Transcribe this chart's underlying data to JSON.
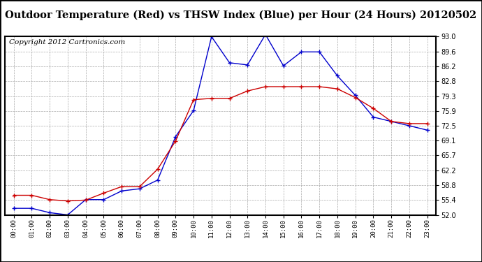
{
  "title": "Outdoor Temperature (Red) vs THSW Index (Blue) per Hour (24 Hours) 20120502",
  "copyright": "Copyright 2012 Cartronics.com",
  "hours": [
    "00:00",
    "01:00",
    "02:00",
    "03:00",
    "04:00",
    "05:00",
    "06:00",
    "07:00",
    "08:00",
    "09:00",
    "10:00",
    "11:00",
    "12:00",
    "13:00",
    "14:00",
    "15:00",
    "16:00",
    "17:00",
    "18:00",
    "19:00",
    "20:00",
    "21:00",
    "22:00",
    "23:00"
  ],
  "red_temp": [
    56.5,
    56.5,
    55.5,
    55.2,
    55.4,
    57.0,
    58.5,
    58.5,
    62.5,
    69.0,
    78.5,
    78.8,
    78.8,
    80.5,
    81.5,
    81.5,
    81.5,
    81.5,
    81.0,
    79.0,
    76.5,
    73.5,
    73.0,
    73.0
  ],
  "blue_thsw": [
    53.5,
    53.5,
    52.5,
    52.0,
    55.5,
    55.5,
    57.5,
    58.0,
    60.0,
    70.0,
    76.0,
    93.0,
    87.0,
    86.5,
    93.5,
    86.3,
    89.5,
    89.5,
    84.0,
    79.5,
    74.5,
    73.5,
    72.5,
    71.5
  ],
  "ylim": [
    52.0,
    93.0
  ],
  "yticks": [
    52.0,
    55.4,
    58.8,
    62.2,
    65.7,
    69.1,
    72.5,
    75.9,
    79.3,
    82.8,
    86.2,
    89.6,
    93.0
  ],
  "red_color": "#cc0000",
  "blue_color": "#0000cc",
  "bg_color": "#ffffff",
  "grid_color": "#aaaaaa",
  "title_fontsize": 10.5,
  "copyright_fontsize": 7.5
}
